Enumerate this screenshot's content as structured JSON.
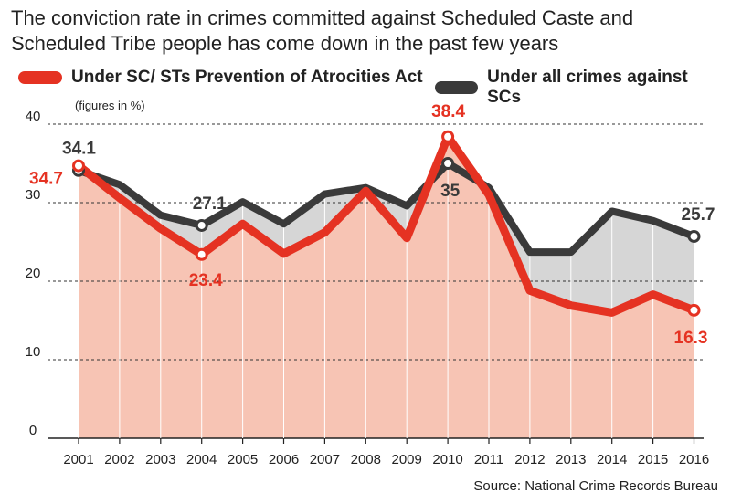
{
  "title_line1": "The conviction rate in crimes committed against Scheduled Caste and",
  "title_line2": "Scheduled Tribe people has come down in the past few years",
  "unit": "(figures in %)",
  "source": "Source: National Crime Records Bureau",
  "colors": {
    "red": "#e53222",
    "dark": "#3a3a3a",
    "red_fill": "#f7c4b4",
    "grey_fill": "#d6d6d6"
  },
  "chart_data": {
    "type": "area",
    "x": [
      "2001",
      "2002",
      "2003",
      "2004",
      "2005",
      "2006",
      "2007",
      "2008",
      "2009",
      "2010",
      "2011",
      "2012",
      "2013",
      "2014",
      "2015",
      "2016"
    ],
    "y_ticks": [
      0,
      10,
      20,
      30,
      40
    ],
    "ylim": [
      0,
      42
    ],
    "grid": true,
    "legend_position": "top",
    "series": [
      {
        "name": "Under SC/ STs Prevention of Atrocities Act",
        "values": [
          34.7,
          30.6,
          26.7,
          23.4,
          27.3,
          23.5,
          26.2,
          31.5,
          25.5,
          38.4,
          31.0,
          18.8,
          16.9,
          16.0,
          18.3,
          16.3
        ]
      },
      {
        "name": "Under all crimes against SCs",
        "values": [
          34.1,
          32.3,
          28.4,
          27.1,
          30.1,
          27.3,
          31.1,
          31.9,
          29.6,
          35.0,
          31.9,
          23.7,
          23.7,
          28.9,
          27.7,
          25.7
        ]
      }
    ],
    "annotations": [
      {
        "series": 1,
        "index": 0,
        "text": "34.1"
      },
      {
        "series": 0,
        "index": 0,
        "text": "34.7"
      },
      {
        "series": 1,
        "index": 3,
        "text": "27.1"
      },
      {
        "series": 0,
        "index": 3,
        "text": "23.4"
      },
      {
        "series": 0,
        "index": 9,
        "text": "38.4"
      },
      {
        "series": 1,
        "index": 9,
        "text": "35"
      },
      {
        "series": 1,
        "index": 15,
        "text": "25.7"
      },
      {
        "series": 0,
        "index": 15,
        "text": "16.3"
      }
    ]
  }
}
